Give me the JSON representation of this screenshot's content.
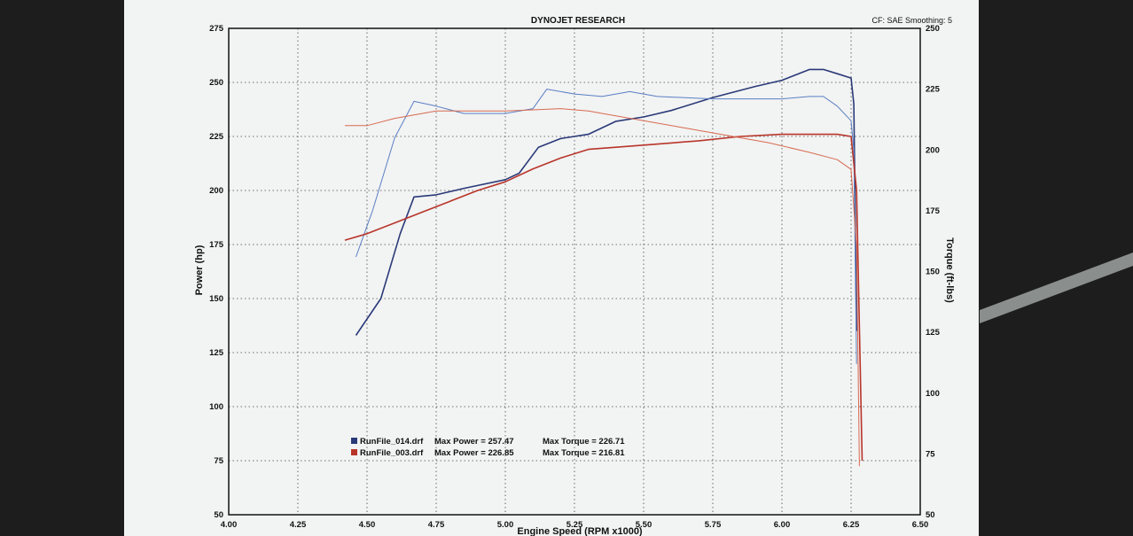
{
  "chart_data": {
    "type": "line",
    "title": "DYNOJET RESEARCH",
    "correction": "CF: SAE  Smoothing: 5",
    "xlabel": "Engine Speed (RPM x1000)",
    "ylabel_left": "Power (hp)",
    "ylabel_right": "Torque (ft-lbs)",
    "xlim": [
      4.0,
      6.5
    ],
    "ylim_left": [
      50,
      275
    ],
    "ylim_right": [
      50,
      250
    ],
    "x_ticks": [
      "4.00",
      "4.25",
      "4.50",
      "4.75",
      "5.00",
      "5.25",
      "5.50",
      "5.75",
      "6.00",
      "6.25",
      "6.50"
    ],
    "y_left_ticks": [
      "50",
      "75",
      "100",
      "125",
      "150",
      "175",
      "200",
      "225",
      "250",
      "275"
    ],
    "y_right_ticks": [
      "50",
      "75",
      "100",
      "125",
      "150",
      "175",
      "200",
      "225",
      "250"
    ],
    "grid": true,
    "legend_placement": "bottom-left",
    "series": [
      {
        "name": "RunFile_014.drf",
        "measure": "power",
        "color": "#2a3a78",
        "points": [
          [
            4.46,
            133
          ],
          [
            4.55,
            150
          ],
          [
            4.62,
            180
          ],
          [
            4.67,
            197
          ],
          [
            4.75,
            198
          ],
          [
            4.85,
            201
          ],
          [
            5.0,
            205
          ],
          [
            5.05,
            208
          ],
          [
            5.12,
            220
          ],
          [
            5.2,
            224
          ],
          [
            5.3,
            226
          ],
          [
            5.4,
            232
          ],
          [
            5.5,
            234
          ],
          [
            5.6,
            237
          ],
          [
            5.75,
            243
          ],
          [
            5.9,
            248
          ],
          [
            6.0,
            251
          ],
          [
            6.1,
            256
          ],
          [
            6.15,
            256
          ],
          [
            6.2,
            254
          ],
          [
            6.25,
            252
          ],
          [
            6.26,
            240
          ],
          [
            6.27,
            135
          ]
        ]
      },
      {
        "name": "RunFile_014.drf",
        "measure": "torque",
        "color": "#5a7fc4",
        "points": [
          [
            4.46,
            156
          ],
          [
            4.52,
            175
          ],
          [
            4.6,
            205
          ],
          [
            4.67,
            220
          ],
          [
            4.75,
            218
          ],
          [
            4.85,
            215
          ],
          [
            5.0,
            215
          ],
          [
            5.1,
            217
          ],
          [
            5.15,
            225
          ],
          [
            5.25,
            223
          ],
          [
            5.35,
            222
          ],
          [
            5.45,
            224
          ],
          [
            5.55,
            222
          ],
          [
            5.75,
            221
          ],
          [
            5.9,
            221
          ],
          [
            6.0,
            221
          ],
          [
            6.1,
            222
          ],
          [
            6.15,
            222
          ],
          [
            6.2,
            218
          ],
          [
            6.25,
            212
          ],
          [
            6.26,
            200
          ],
          [
            6.27,
            112
          ]
        ]
      },
      {
        "name": "RunFile_003.drf",
        "measure": "power",
        "color": "#b8352a",
        "points": [
          [
            4.42,
            177
          ],
          [
            4.5,
            180
          ],
          [
            4.6,
            185
          ],
          [
            4.7,
            190
          ],
          [
            4.8,
            195
          ],
          [
            4.9,
            200
          ],
          [
            5.0,
            204
          ],
          [
            5.1,
            210
          ],
          [
            5.2,
            215
          ],
          [
            5.3,
            219
          ],
          [
            5.5,
            221
          ],
          [
            5.7,
            223
          ],
          [
            5.85,
            225
          ],
          [
            6.0,
            226
          ],
          [
            6.1,
            226
          ],
          [
            6.2,
            226
          ],
          [
            6.25,
            225
          ],
          [
            6.27,
            200
          ],
          [
            6.29,
            75
          ]
        ]
      },
      {
        "name": "RunFile_003.drf",
        "measure": "torque",
        "color": "#d86a50",
        "points": [
          [
            4.42,
            210
          ],
          [
            4.5,
            210
          ],
          [
            4.6,
            213
          ],
          [
            4.75,
            216
          ],
          [
            4.9,
            216
          ],
          [
            5.0,
            216
          ],
          [
            5.1,
            216.5
          ],
          [
            5.2,
            217
          ],
          [
            5.3,
            216
          ],
          [
            5.5,
            212
          ],
          [
            5.65,
            209
          ],
          [
            5.8,
            206
          ],
          [
            5.95,
            203
          ],
          [
            6.1,
            199
          ],
          [
            6.2,
            196
          ],
          [
            6.25,
            192
          ],
          [
            6.27,
            160
          ],
          [
            6.28,
            70
          ]
        ]
      }
    ],
    "legend": [
      {
        "file": "RunFile_014.drf",
        "max_power_label": "Max Power = 257.47",
        "max_torque_label": "Max Torque = 226.71",
        "color": "#2a3a78"
      },
      {
        "file": "RunFile_003.drf",
        "max_power_label": "Max Power = 226.85",
        "max_torque_label": "Max Torque = 216.81",
        "color": "#b8352a"
      }
    ]
  }
}
